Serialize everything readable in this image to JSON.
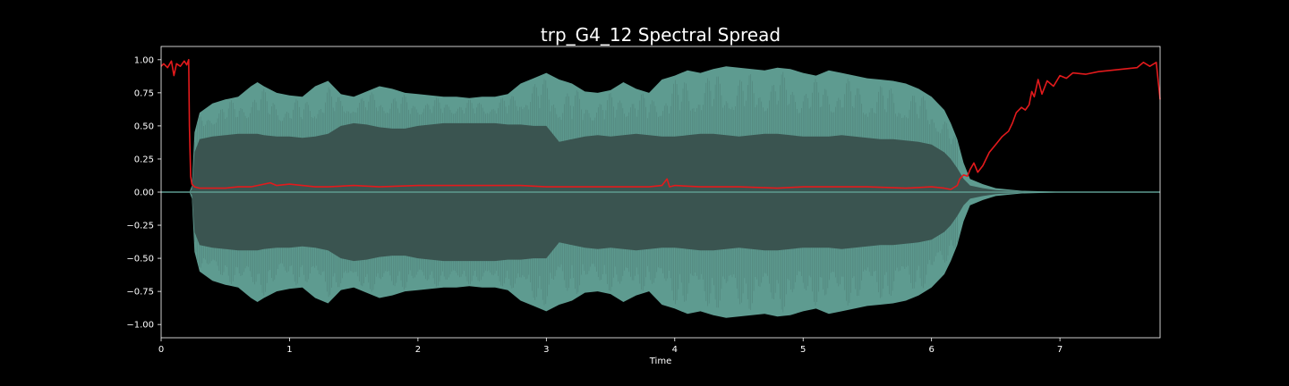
{
  "chart_data": {
    "type": "line",
    "title": "trp_G4_12 Spectral Spread",
    "xlabel": "Time",
    "ylabel": "",
    "xlim": [
      0,
      7.78
    ],
    "ylim": [
      -1.1,
      1.1
    ],
    "x_ticks": [
      0,
      1,
      2,
      3,
      4,
      5,
      6,
      7
    ],
    "y_ticks": [
      -1.0,
      -0.75,
      -0.5,
      -0.25,
      0.0,
      0.25,
      0.5,
      0.75,
      1.0
    ],
    "y_tick_labels": [
      "−1.00",
      "−0.75",
      "−0.50",
      "−0.25",
      "0.00",
      "0.25",
      "0.50",
      "0.75",
      "1.00"
    ],
    "grid": false,
    "colors": {
      "background": "#000000",
      "axes": "#ffffff",
      "waveform_outer": "#5e9b90",
      "waveform_inner": "#3a5450",
      "spread_line": "#e31a1c"
    },
    "series": [
      {
        "kind": "waveform_envelope",
        "x": [
          0.0,
          0.22,
          0.24,
          0.26,
          0.3,
          0.4,
          0.5,
          0.6,
          0.7,
          0.75,
          0.8,
          0.9,
          1.0,
          1.1,
          1.2,
          1.3,
          1.4,
          1.5,
          1.6,
          1.7,
          1.8,
          1.9,
          2.0,
          2.1,
          2.2,
          2.3,
          2.4,
          2.5,
          2.6,
          2.7,
          2.8,
          2.9,
          3.0,
          3.1,
          3.2,
          3.3,
          3.4,
          3.5,
          3.6,
          3.7,
          3.8,
          3.9,
          4.0,
          4.1,
          4.2,
          4.3,
          4.4,
          4.5,
          4.6,
          4.7,
          4.8,
          4.9,
          5.0,
          5.1,
          5.2,
          5.3,
          5.4,
          5.5,
          5.6,
          5.7,
          5.8,
          5.9,
          6.0,
          6.1,
          6.15,
          6.2,
          6.25,
          6.3,
          6.4,
          6.5,
          6.7,
          7.0,
          7.78
        ],
        "upper": [
          0.0,
          0.0,
          0.05,
          0.45,
          0.6,
          0.67,
          0.7,
          0.72,
          0.8,
          0.83,
          0.8,
          0.75,
          0.73,
          0.72,
          0.8,
          0.84,
          0.74,
          0.72,
          0.76,
          0.8,
          0.78,
          0.75,
          0.74,
          0.73,
          0.72,
          0.72,
          0.71,
          0.72,
          0.72,
          0.74,
          0.82,
          0.86,
          0.9,
          0.85,
          0.82,
          0.76,
          0.75,
          0.77,
          0.83,
          0.78,
          0.75,
          0.85,
          0.88,
          0.92,
          0.9,
          0.93,
          0.95,
          0.94,
          0.93,
          0.92,
          0.94,
          0.93,
          0.9,
          0.88,
          0.92,
          0.9,
          0.88,
          0.86,
          0.85,
          0.84,
          0.82,
          0.78,
          0.72,
          0.62,
          0.52,
          0.4,
          0.22,
          0.1,
          0.06,
          0.03,
          0.01,
          0.003,
          0.0
        ],
        "inner": [
          0.0,
          0.0,
          0.02,
          0.3,
          0.4,
          0.42,
          0.43,
          0.44,
          0.44,
          0.44,
          0.43,
          0.42,
          0.42,
          0.41,
          0.42,
          0.44,
          0.5,
          0.52,
          0.51,
          0.49,
          0.48,
          0.48,
          0.5,
          0.51,
          0.52,
          0.52,
          0.52,
          0.52,
          0.52,
          0.51,
          0.51,
          0.5,
          0.5,
          0.38,
          0.4,
          0.42,
          0.43,
          0.42,
          0.43,
          0.44,
          0.43,
          0.42,
          0.42,
          0.43,
          0.44,
          0.44,
          0.43,
          0.42,
          0.43,
          0.44,
          0.44,
          0.43,
          0.42,
          0.42,
          0.42,
          0.43,
          0.42,
          0.41,
          0.4,
          0.4,
          0.39,
          0.38,
          0.36,
          0.3,
          0.25,
          0.18,
          0.1,
          0.05,
          0.03,
          0.015,
          0.005,
          0.002,
          0.0
        ]
      },
      {
        "kind": "spectral_spread",
        "x": [
          0.0,
          0.02,
          0.05,
          0.08,
          0.1,
          0.12,
          0.15,
          0.18,
          0.2,
          0.215,
          0.22,
          0.23,
          0.24,
          0.26,
          0.3,
          0.4,
          0.5,
          0.6,
          0.7,
          0.8,
          0.85,
          0.9,
          1.0,
          1.1,
          1.2,
          1.3,
          1.5,
          1.7,
          2.0,
          2.3,
          2.6,
          2.8,
          3.0,
          3.2,
          3.5,
          3.8,
          3.9,
          3.94,
          3.96,
          4.0,
          4.2,
          4.5,
          4.8,
          5.0,
          5.2,
          5.5,
          5.8,
          6.0,
          6.1,
          6.15,
          6.2,
          6.22,
          6.25,
          6.28,
          6.3,
          6.33,
          6.36,
          6.4,
          6.45,
          6.5,
          6.55,
          6.6,
          6.63,
          6.66,
          6.7,
          6.73,
          6.76,
          6.78,
          6.8,
          6.83,
          6.86,
          6.9,
          6.95,
          7.0,
          7.05,
          7.1,
          7.2,
          7.3,
          7.4,
          7.5,
          7.6,
          7.65,
          7.7,
          7.75,
          7.78
        ],
        "y": [
          0.95,
          0.97,
          0.94,
          0.99,
          0.88,
          0.97,
          0.95,
          0.99,
          0.96,
          1.0,
          0.5,
          0.12,
          0.06,
          0.04,
          0.03,
          0.03,
          0.03,
          0.04,
          0.04,
          0.06,
          0.07,
          0.05,
          0.06,
          0.05,
          0.04,
          0.04,
          0.05,
          0.04,
          0.05,
          0.05,
          0.05,
          0.05,
          0.04,
          0.04,
          0.04,
          0.04,
          0.05,
          0.1,
          0.04,
          0.05,
          0.04,
          0.04,
          0.03,
          0.04,
          0.04,
          0.04,
          0.03,
          0.04,
          0.03,
          0.02,
          0.05,
          0.1,
          0.13,
          0.12,
          0.17,
          0.22,
          0.15,
          0.2,
          0.3,
          0.36,
          0.42,
          0.46,
          0.52,
          0.6,
          0.64,
          0.62,
          0.66,
          0.76,
          0.72,
          0.85,
          0.74,
          0.84,
          0.8,
          0.88,
          0.86,
          0.9,
          0.89,
          0.91,
          0.92,
          0.93,
          0.94,
          0.98,
          0.95,
          0.98,
          0.7
        ]
      }
    ]
  }
}
